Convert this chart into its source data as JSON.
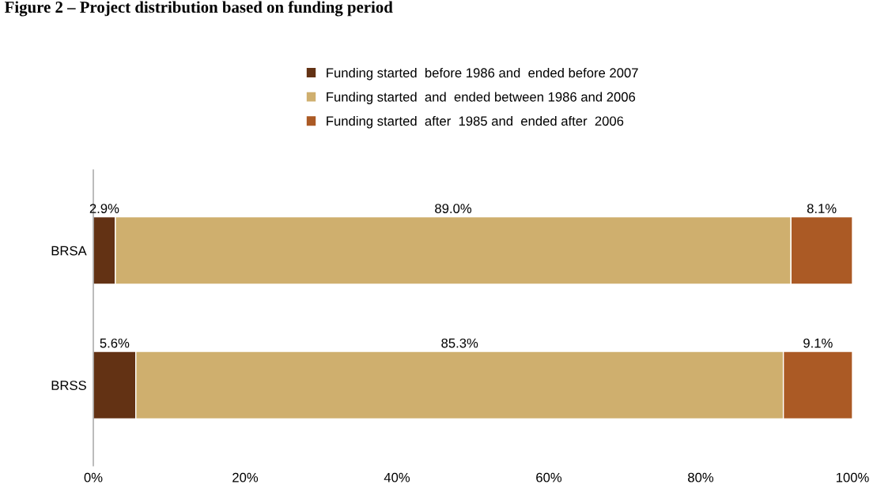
{
  "chart_data": {
    "type": "bar",
    "orientation": "horizontal",
    "stacked": true,
    "title": "Figure 2 – Project distribution based on funding period",
    "categories": [
      "BRSA",
      "BRSS"
    ],
    "series": [
      {
        "name": "Funding started  before 1986 and  ended before 2007",
        "color": "#633214",
        "values": [
          2.9,
          5.6
        ],
        "value_labels": [
          "2.9%",
          "5.6%"
        ]
      },
      {
        "name": "Funding started  and  ended between 1986 and 2006",
        "color": "#cfaf6e",
        "values": [
          89.0,
          85.3
        ],
        "value_labels": [
          "89.0%",
          "85.3%"
        ]
      },
      {
        "name": "Funding started  after  1985 and  ended after  2006",
        "color": "#ab5a25",
        "values": [
          8.1,
          9.1
        ],
        "value_labels": [
          "8.1%",
          "9.1%"
        ]
      }
    ],
    "xlim": [
      0,
      100
    ],
    "xticks": [
      {
        "value": 0,
        "label": "0%"
      },
      {
        "value": 20,
        "label": "20%"
      },
      {
        "value": 40,
        "label": "40%"
      },
      {
        "value": 60,
        "label": "60%"
      },
      {
        "value": 80,
        "label": "80%"
      },
      {
        "value": 100,
        "label": "100%"
      }
    ],
    "grid": false,
    "legend": "top"
  }
}
